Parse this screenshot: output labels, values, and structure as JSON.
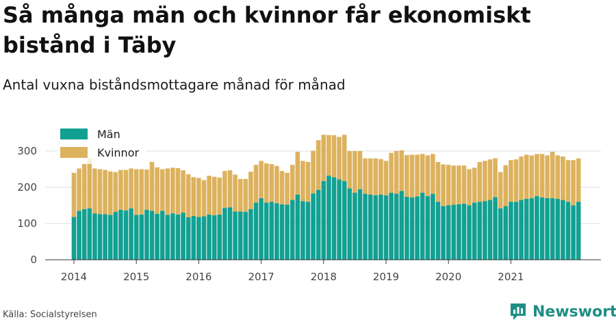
{
  "header": {
    "title": "Så många män och kvinnor får ekonomiskt bistånd i Täby",
    "subtitle": "Antal vuxna biståndsmottagare månad för månad"
  },
  "footer": {
    "source": "Källa: Socialstyrelsen",
    "brand": "Newsworthy"
  },
  "colors": {
    "men": "#12a092",
    "women": "#ddb25e",
    "grid": "#dddddd",
    "brand": "#1f8e86"
  },
  "chart_data": {
    "type": "bar",
    "stacked": true,
    "x_start": "2014-01",
    "x_end": "2021-12",
    "xticks": [
      "2014",
      "2015",
      "2016",
      "2017",
      "2018",
      "2019",
      "2020",
      "2021"
    ],
    "yticks": [
      "0",
      "100",
      "200",
      "300"
    ],
    "ylim": [
      0,
      350
    ],
    "grid": true,
    "legend": "top-left",
    "series": [
      {
        "name": "Män",
        "values": [
          118,
          135,
          140,
          142,
          128,
          126,
          126,
          124,
          132,
          138,
          136,
          142,
          124,
          125,
          138,
          135,
          127,
          135,
          124,
          128,
          125,
          130,
          117,
          121,
          118,
          120,
          125,
          123,
          125,
          143,
          145,
          133,
          133,
          132,
          140,
          158,
          170,
          158,
          160,
          156,
          153,
          152,
          165,
          180,
          162,
          160,
          183,
          193,
          217,
          232,
          228,
          222,
          217,
          197,
          185,
          195,
          182,
          180,
          178,
          180,
          178,
          185,
          182,
          190,
          174,
          172,
          175,
          185,
          176,
          182,
          160,
          148,
          150,
          152,
          153,
          155,
          150,
          158,
          160,
          162,
          165,
          173,
          142,
          148,
          160,
          160,
          165,
          168,
          170,
          176,
          172,
          170,
          170,
          168,
          165,
          160,
          150,
          160
        ]
      },
      {
        "name": "Kvinnor",
        "values": [
          122,
          117,
          125,
          138,
          124,
          124,
          122,
          120,
          110,
          110,
          112,
          110,
          126,
          125,
          111,
          135,
          128,
          115,
          128,
          126,
          128,
          117,
          119,
          107,
          108,
          100,
          107,
          106,
          102,
          102,
          102,
          102,
          90,
          91,
          103,
          104,
          103,
          108,
          104,
          103,
          92,
          88,
          97,
          118,
          111,
          110,
          118,
          137,
          128,
          112,
          116,
          117,
          128,
          103,
          115,
          105,
          98,
          100,
          102,
          98,
          95,
          110,
          118,
          112,
          115,
          118,
          115,
          107,
          112,
          110,
          110,
          115,
          112,
          108,
          107,
          105,
          100,
          96,
          110,
          111,
          112,
          107,
          100,
          113,
          115,
          117,
          120,
          122,
          118,
          116,
          120,
          118,
          128,
          120,
          120,
          115,
          125,
          120
        ]
      }
    ]
  }
}
